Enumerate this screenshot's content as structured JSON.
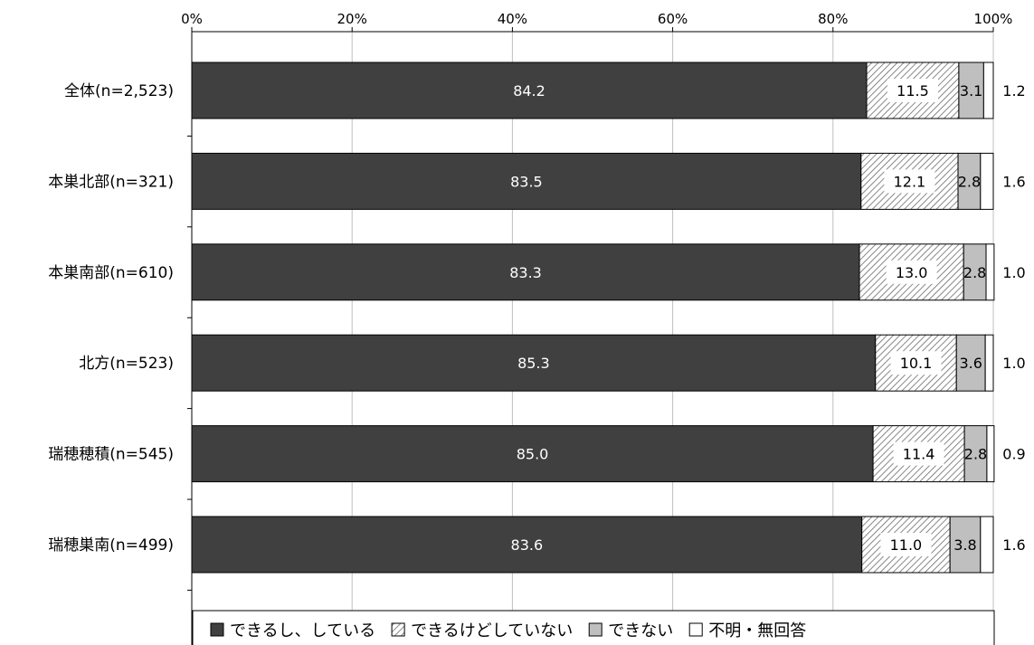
{
  "chart_data": {
    "type": "bar",
    "orientation": "horizontal",
    "stacked": "percent",
    "xlim": [
      0,
      100
    ],
    "x_ticks": [
      "0%",
      "20%",
      "40%",
      "60%",
      "80%",
      "100%"
    ],
    "grid": true,
    "legend_position": "bottom",
    "categories": [
      "全体(n=2,523)",
      "本巣北部(n=321)",
      "本巣南部(n=610)",
      "北方(n=523)",
      "瑞穂穂積(n=545)",
      "瑞穂巣南(n=499)"
    ],
    "series": [
      {
        "name": "できるし、している",
        "color": "#404040",
        "fill": "solid",
        "values": [
          84.2,
          83.5,
          83.3,
          85.3,
          85.0,
          83.6
        ],
        "labels": [
          "84.2",
          "83.5",
          "83.3",
          "85.3",
          "85.0",
          "83.6"
        ]
      },
      {
        "name": "できるけどしていない",
        "color": "#ffffff",
        "fill": "hatch",
        "values": [
          11.5,
          12.1,
          13.0,
          10.1,
          11.4,
          11.0
        ],
        "labels": [
          "11.5",
          "12.1",
          "13.0",
          "10.1",
          "11.4",
          "11.0"
        ]
      },
      {
        "name": "できない",
        "color": "#bfbfbf",
        "fill": "solid",
        "values": [
          3.1,
          2.8,
          2.8,
          3.6,
          2.8,
          3.8
        ],
        "labels": [
          "3.1",
          "2.8",
          "2.8",
          "3.6",
          "2.8",
          "3.8"
        ]
      },
      {
        "name": "不明・無回答",
        "color": "#ffffff",
        "fill": "solid",
        "values": [
          1.2,
          1.6,
          1.0,
          1.0,
          0.9,
          1.6
        ],
        "labels": [
          "1.2",
          "1.6",
          "1.0",
          "1.0",
          "0.9",
          "1.6"
        ]
      }
    ]
  }
}
